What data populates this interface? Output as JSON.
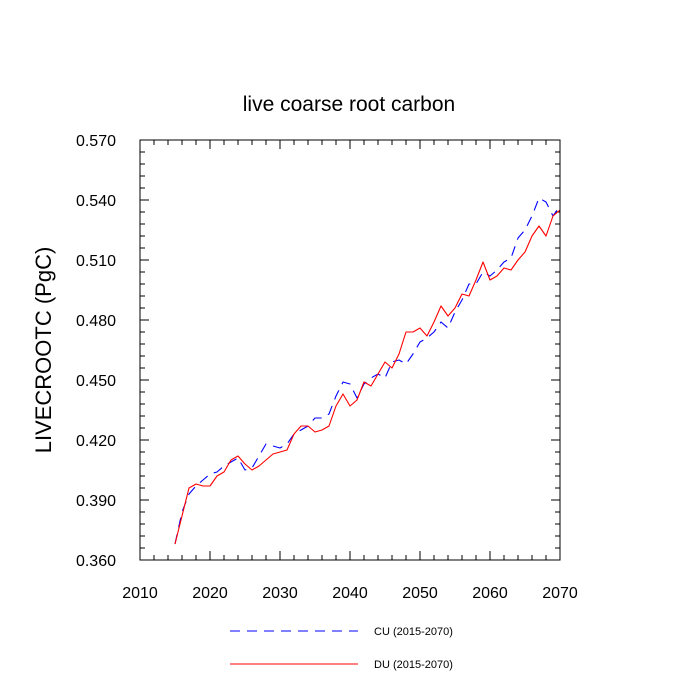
{
  "chart_data": {
    "type": "line",
    "title": "live coarse root carbon",
    "xlabel": "",
    "ylabel": "LIVECROOTC  (PgC)",
    "xlim": [
      2010,
      2070
    ],
    "ylim": [
      0.36,
      0.57
    ],
    "xticks": [
      2010,
      2020,
      2030,
      2040,
      2050,
      2060,
      2070
    ],
    "xtick_labels": [
      "2010",
      "2020",
      "2030",
      "2040",
      "2050",
      "2060",
      "2070"
    ],
    "yticks": [
      0.36,
      0.39,
      0.42,
      0.45,
      0.48,
      0.51,
      0.54,
      0.57
    ],
    "ytick_labels": [
      "0.360",
      "0.390",
      "0.420",
      "0.450",
      "0.480",
      "0.510",
      "0.540",
      "0.570"
    ],
    "grid": false,
    "legend_position": "bottom",
    "x": [
      2015,
      2016,
      2017,
      2018,
      2019,
      2020,
      2021,
      2022,
      2023,
      2024,
      2025,
      2026,
      2027,
      2028,
      2029,
      2030,
      2031,
      2032,
      2033,
      2034,
      2035,
      2036,
      2037,
      2038,
      2039,
      2040,
      2041,
      2042,
      2043,
      2044,
      2045,
      2046,
      2047,
      2048,
      2049,
      2050,
      2051,
      2052,
      2053,
      2054,
      2055,
      2056,
      2057,
      2058,
      2059,
      2060,
      2061,
      2062,
      2063,
      2064,
      2065,
      2066,
      2067,
      2068,
      2069,
      2070
    ],
    "series": [
      {
        "name": "CU (2015-2070)",
        "color": "#0000ff",
        "style": "dashed",
        "values": [
          0.368,
          0.384,
          0.393,
          0.397,
          0.4,
          0.403,
          0.404,
          0.407,
          0.409,
          0.411,
          0.405,
          0.406,
          0.412,
          0.418,
          0.417,
          0.416,
          0.418,
          0.423,
          0.425,
          0.427,
          0.431,
          0.431,
          0.433,
          0.442,
          0.449,
          0.448,
          0.441,
          0.448,
          0.451,
          0.453,
          0.451,
          0.459,
          0.46,
          0.458,
          0.463,
          0.469,
          0.471,
          0.474,
          0.479,
          0.476,
          0.484,
          0.49,
          0.498,
          0.498,
          0.504,
          0.502,
          0.505,
          0.509,
          0.511,
          0.521,
          0.525,
          0.532,
          0.541,
          0.539,
          0.532,
          0.537
        ]
      },
      {
        "name": "DU (2015-2070)",
        "color": "#ff0000",
        "style": "solid",
        "values": [
          0.368,
          0.382,
          0.396,
          0.398,
          0.397,
          0.397,
          0.402,
          0.404,
          0.41,
          0.412,
          0.408,
          0.405,
          0.407,
          0.41,
          0.413,
          0.414,
          0.415,
          0.423,
          0.427,
          0.427,
          0.424,
          0.425,
          0.427,
          0.437,
          0.443,
          0.437,
          0.44,
          0.449,
          0.447,
          0.453,
          0.459,
          0.456,
          0.463,
          0.474,
          0.474,
          0.476,
          0.472,
          0.479,
          0.487,
          0.482,
          0.486,
          0.493,
          0.492,
          0.5,
          0.509,
          0.5,
          0.502,
          0.506,
          0.505,
          0.51,
          0.514,
          0.522,
          0.527,
          0.522,
          0.532,
          0.535
        ]
      }
    ]
  }
}
